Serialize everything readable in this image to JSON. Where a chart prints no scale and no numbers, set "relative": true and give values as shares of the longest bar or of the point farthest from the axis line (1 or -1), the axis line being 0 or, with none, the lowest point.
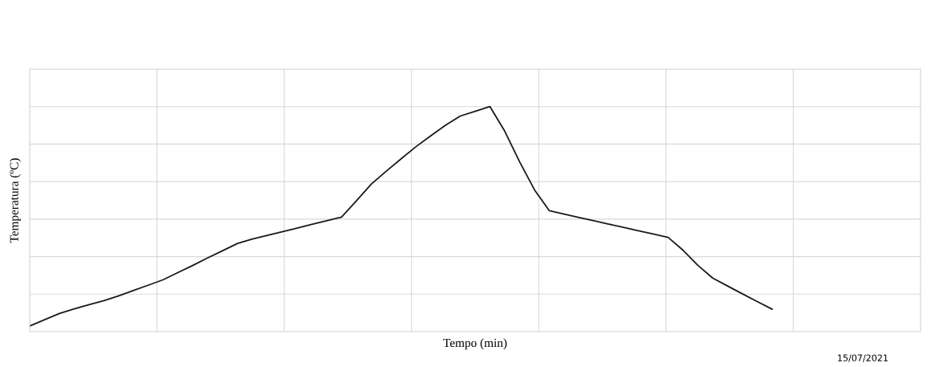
{
  "chart_data": {
    "type": "line",
    "xlabel": "Tempo (min)",
    "ylabel": "Temperatura (ºC)",
    "relative": true,
    "categories": [
      null,
      null,
      null,
      null,
      null,
      null,
      null,
      null,
      null,
      null,
      null,
      null,
      null,
      null,
      null,
      null,
      null,
      null,
      null,
      null,
      null,
      null,
      null,
      null,
      null,
      null,
      null,
      null,
      null,
      null,
      null,
      null,
      null,
      null,
      null,
      null,
      null,
      null,
      null,
      null,
      null,
      null,
      null,
      null,
      null,
      null,
      null,
      null,
      null,
      null,
      null,
      null,
      null,
      null,
      null,
      null,
      null,
      null,
      null,
      null,
      null
    ],
    "series": [
      {
        "color": "#1a1a1a",
        "values": [
          0.025,
          0.053,
          0.081,
          0.101,
          0.12,
          0.138,
          0.159,
          0.183,
          0.207,
          0.231,
          0.263,
          0.295,
          0.328,
          0.36,
          0.392,
          0.412,
          0.428,
          0.444,
          0.46,
          0.477,
          0.493,
          0.509,
          0.581,
          0.655,
          0.712,
          0.767,
          0.821,
          0.87,
          0.917,
          0.958,
          0.979,
          1.0,
          0.89,
          0.754,
          0.63,
          0.537,
          0.522,
          0.507,
          0.493,
          0.478,
          0.463,
          0.448,
          0.434,
          0.419,
          0.362,
          0.295,
          0.238,
          0.203,
          0.168,
          0.134,
          0.1,
          null,
          null,
          null,
          null,
          null,
          null,
          null,
          null,
          null,
          null
        ]
      }
    ],
    "grid": true,
    "tick_labels": false,
    "marker": "none",
    "line_style": "solid",
    "annotations": [
      "15/07/2021"
    ]
  }
}
